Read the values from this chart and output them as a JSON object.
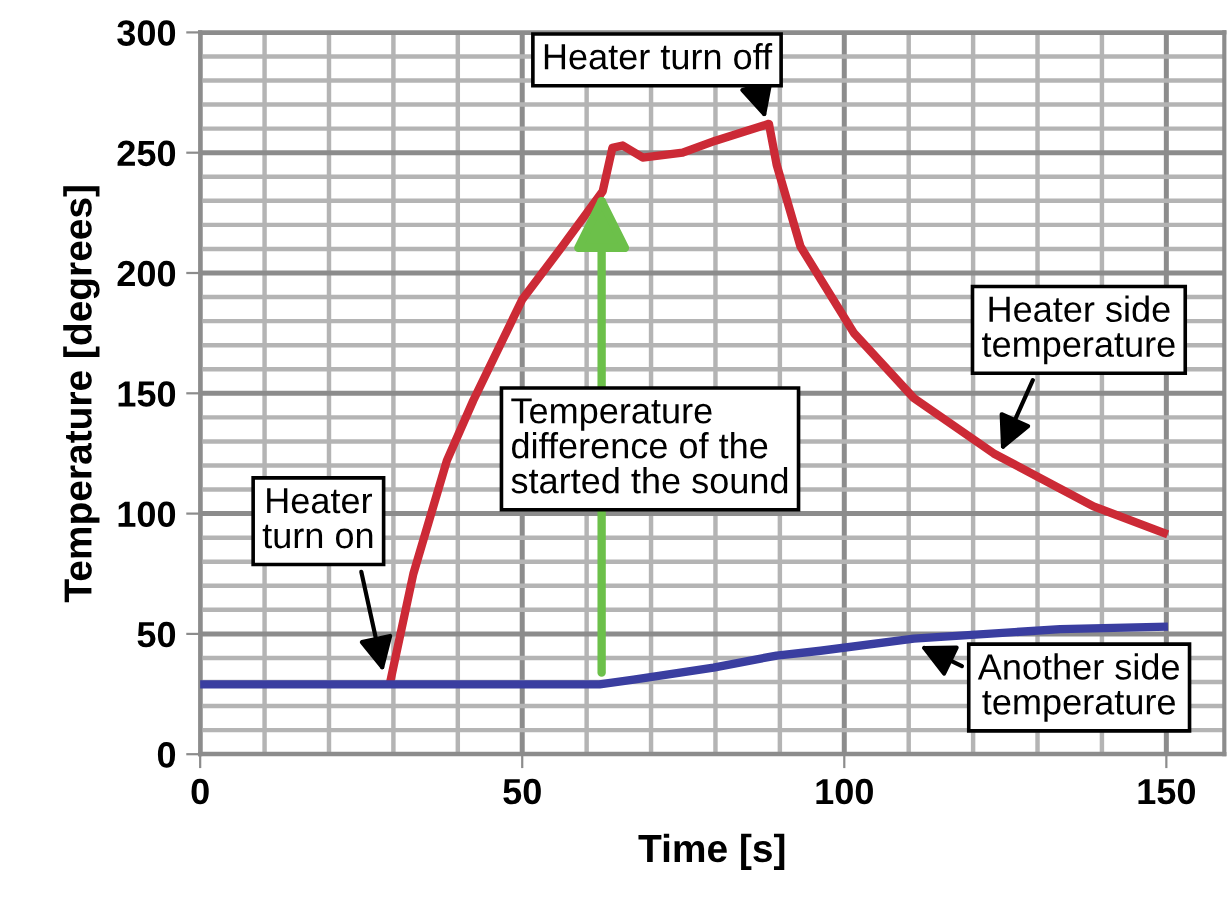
{
  "chart_data": {
    "type": "line",
    "xlabel": "Time [s]",
    "ylabel": "Temperature [degrees]",
    "xlim": [
      0,
      159
    ],
    "ylim": [
      0,
      300
    ],
    "xticks": [
      0,
      50,
      100,
      150
    ],
    "yticks": [
      0,
      50,
      100,
      150,
      200,
      250,
      300
    ],
    "grid": true,
    "legend": false,
    "marker": "none",
    "line_style": "solid",
    "series": [
      {
        "color": "#cc2a36",
        "x": [
          29.5,
          33.1,
          38.3,
          42.4,
          50,
          56.2,
          62.5,
          64,
          65.6,
          68.7,
          74.9,
          80,
          88.3,
          89.5,
          93.2,
          101.5,
          110.8,
          123.2,
          138.7,
          149.6
        ],
        "values": [
          30,
          75,
          122,
          147,
          189,
          211,
          234,
          252,
          253,
          248,
          250,
          255,
          262,
          245,
          211,
          175,
          148,
          125,
          103,
          92
        ]
      },
      {
        "color": "#3a3ea0",
        "x": [
          0,
          29.5,
          62,
          67.3,
          79.7,
          89.5,
          96.3,
          110.8,
          133.5,
          149.6
        ],
        "values": [
          29,
          29,
          29,
          31,
          36,
          41,
          43,
          48,
          52,
          53
        ]
      }
    ],
    "annotations": [
      {
        "text": "Heater\nturn on",
        "x": 28.6,
        "y": 32
      },
      {
        "text": "Heater turn off",
        "x": 88,
        "y": 262
      },
      "Temperature\ndifference of the\nstarted the sound",
      {
        "text": "Heater side\ntemperature",
        "x": 124,
        "y": 124
      },
      {
        "text": "Another side\ntemperature",
        "x": 111,
        "y": 46
      }
    ]
  }
}
